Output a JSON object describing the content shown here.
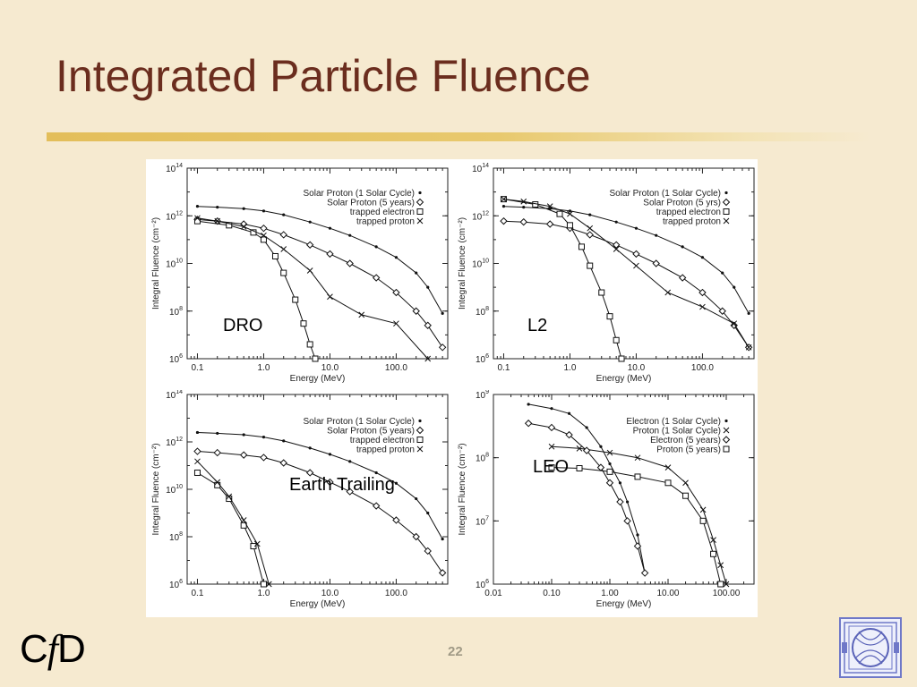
{
  "slide": {
    "title": "Integrated Particle Fluence",
    "page_number": "22",
    "logo_text_c": "C",
    "logo_text_f": "f",
    "logo_text_d": "D",
    "emblem_icon": "institution-emblem-icon"
  },
  "colors": {
    "title": "#6b2d1e",
    "background": "#f6ead0",
    "rule": "#e3be5a"
  },
  "chart_data": [
    {
      "type": "line",
      "panel_label": "DRO",
      "xlabel": "Energy (MeV)",
      "ylabel": "Integral Fluence (cm⁻²)",
      "xscale": "log",
      "yscale": "log",
      "xlim": [
        0.07,
        600
      ],
      "ylim": [
        1000000.0,
        100000000000000.0
      ],
      "xticks": [
        "0.1",
        "1.0",
        "10.0",
        "100.0"
      ],
      "yticks": [
        {
          "base": "10",
          "exp": "14"
        },
        {
          "base": "10",
          "exp": "12"
        },
        {
          "base": "10",
          "exp": "10"
        },
        {
          "base": "10",
          "exp": "8"
        },
        {
          "base": "10",
          "exp": "6"
        }
      ],
      "series": [
        {
          "name": "Solar Proton (1 Solar Cycle)",
          "marker": "dot",
          "x": [
            0.1,
            0.2,
            0.5,
            1,
            2,
            5,
            10,
            20,
            50,
            100,
            200,
            300,
            500
          ],
          "y": [
            2500000000000.0,
            2300000000000.0,
            2000000000000.0,
            1600000000000.0,
            1100000000000.0,
            550000000000.0,
            300000000000.0,
            150000000000.0,
            50000000000.0,
            18000000000.0,
            4000000000.0,
            1000000000.0,
            80000000.0
          ]
        },
        {
          "name": "Solar Proton (5 years)",
          "marker": "diamond",
          "x": [
            0.1,
            0.2,
            0.5,
            1,
            2,
            5,
            10,
            20,
            50,
            100,
            200,
            300,
            500
          ],
          "y": [
            700000000000.0,
            600000000000.0,
            450000000000.0,
            300000000000.0,
            160000000000.0,
            60000000000.0,
            25000000000.0,
            10000000000.0,
            2500000000.0,
            600000000.0,
            100000000.0,
            25000000.0,
            3000000.0
          ]
        },
        {
          "name": "trapped electron",
          "marker": "square",
          "x": [
            0.1,
            0.3,
            0.7,
            1,
            1.5,
            2,
            3,
            4,
            5,
            6
          ],
          "y": [
            600000000000.0,
            400000000000.0,
            200000000000.0,
            100000000000.0,
            20000000000.0,
            4000000000.0,
            300000000.0,
            30000000.0,
            4000000.0,
            1000000.0
          ]
        },
        {
          "name": "trapped proton",
          "marker": "cross",
          "x": [
            0.1,
            0.2,
            0.5,
            1,
            2,
            5,
            10,
            30,
            100,
            300
          ],
          "y": [
            800000000000.0,
            600000000000.0,
            350000000000.0,
            150000000000.0,
            40000000000.0,
            5000000000.0,
            400000000.0,
            70000000.0,
            30000000.0,
            1000000.0
          ]
        }
      ]
    },
    {
      "type": "line",
      "panel_label": "L2",
      "xlabel": "Energy (MeV)",
      "ylabel": "Integral Fluence (cm⁻²)",
      "xscale": "log",
      "yscale": "log",
      "xlim": [
        0.07,
        600
      ],
      "ylim": [
        1000000.0,
        100000000000000.0
      ],
      "xticks": [
        "0.1",
        "1.0",
        "10.0",
        "100.0"
      ],
      "yticks": [
        {
          "base": "10",
          "exp": "14"
        },
        {
          "base": "10",
          "exp": "12"
        },
        {
          "base": "10",
          "exp": "10"
        },
        {
          "base": "10",
          "exp": "8"
        },
        {
          "base": "10",
          "exp": "6"
        }
      ],
      "series": [
        {
          "name": "Solar Proton (1 Solar Cycle)",
          "marker": "dot",
          "x": [
            0.1,
            0.2,
            0.5,
            1,
            2,
            5,
            10,
            20,
            50,
            100,
            200,
            300,
            500
          ],
          "y": [
            2500000000000.0,
            2300000000000.0,
            2000000000000.0,
            1600000000000.0,
            1100000000000.0,
            550000000000.0,
            300000000000.0,
            150000000000.0,
            50000000000.0,
            18000000000.0,
            4000000000.0,
            1000000000.0,
            80000000.0
          ]
        },
        {
          "name": "Solar Proton (5 yrs)",
          "marker": "diamond",
          "x": [
            0.1,
            0.2,
            0.5,
            1,
            2,
            5,
            10,
            20,
            50,
            100,
            200,
            300,
            500
          ],
          "y": [
            600000000000.0,
            550000000000.0,
            450000000000.0,
            300000000000.0,
            160000000000.0,
            60000000000.0,
            25000000000.0,
            10000000000.0,
            2500000000.0,
            600000000.0,
            100000000.0,
            25000000.0,
            3000000.0
          ]
        },
        {
          "name": "trapped electron",
          "marker": "square",
          "x": [
            0.1,
            0.3,
            0.7,
            1,
            1.5,
            2,
            3,
            4,
            5,
            6
          ],
          "y": [
            5000000000000.0,
            3000000000000.0,
            1200000000000.0,
            400000000000.0,
            50000000000.0,
            8000000000.0,
            600000000.0,
            60000000.0,
            6000000.0,
            1000000.0
          ]
        },
        {
          "name": "trapped proton",
          "marker": "cross",
          "x": [
            0.1,
            0.2,
            0.5,
            1,
            2,
            5,
            10,
            30,
            100,
            300,
            500
          ],
          "y": [
            5000000000000.0,
            4000000000000.0,
            2500000000000.0,
            1200000000000.0,
            300000000000.0,
            40000000000.0,
            8000000000.0,
            600000000.0,
            150000000.0,
            30000000.0,
            3000000.0
          ]
        }
      ]
    },
    {
      "type": "line",
      "panel_label": "Earth Trailing",
      "xlabel": "Energy (MeV)",
      "ylabel": "Integral Fluence (cm⁻²)",
      "xscale": "log",
      "yscale": "log",
      "xlim": [
        0.07,
        600
      ],
      "ylim": [
        1000000.0,
        100000000000000.0
      ],
      "xticks": [
        "0.1",
        "1.0",
        "10.0",
        "100.0"
      ],
      "yticks": [
        {
          "base": "10",
          "exp": "14"
        },
        {
          "base": "10",
          "exp": "12"
        },
        {
          "base": "10",
          "exp": "10"
        },
        {
          "base": "10",
          "exp": "8"
        },
        {
          "base": "10",
          "exp": "6"
        }
      ],
      "series": [
        {
          "name": "Solar Proton (1 Solar Cycle)",
          "marker": "dot",
          "x": [
            0.1,
            0.2,
            0.5,
            1,
            2,
            5,
            10,
            20,
            50,
            100,
            200,
            300,
            500
          ],
          "y": [
            2500000000000.0,
            2300000000000.0,
            2000000000000.0,
            1600000000000.0,
            1100000000000.0,
            550000000000.0,
            300000000000.0,
            150000000000.0,
            50000000000.0,
            18000000000.0,
            4000000000.0,
            1000000000.0,
            80000000.0
          ]
        },
        {
          "name": "Solar Proton (5 years)",
          "marker": "diamond",
          "x": [
            0.1,
            0.2,
            0.5,
            1,
            2,
            5,
            10,
            20,
            50,
            100,
            200,
            300,
            500
          ],
          "y": [
            400000000000.0,
            350000000000.0,
            280000000000.0,
            220000000000.0,
            130000000000.0,
            50000000000.0,
            20000000000.0,
            8000000000.0,
            2000000000.0,
            500000000.0,
            100000000.0,
            25000000.0,
            3000000.0
          ]
        },
        {
          "name": "trapped electron",
          "marker": "square",
          "x": [
            0.1,
            0.2,
            0.3,
            0.5,
            0.7,
            1
          ],
          "y": [
            50000000000.0,
            15000000000.0,
            4000000000.0,
            300000000.0,
            40000000.0,
            1000000.0
          ]
        },
        {
          "name": "trapped proton",
          "marker": "cross",
          "x": [
            0.1,
            0.2,
            0.3,
            0.5,
            0.8,
            1.2
          ],
          "y": [
            150000000000.0,
            20000000000.0,
            5000000000.0,
            500000000.0,
            50000000.0,
            1000000.0
          ]
        }
      ]
    },
    {
      "type": "line",
      "panel_label": "LEO",
      "xlabel": "Energy (MeV)",
      "ylabel": "Integral Fluence (cm⁻²)",
      "xscale": "log",
      "yscale": "log",
      "xlim": [
        0.01,
        300
      ],
      "ylim": [
        1000000.0,
        1000000000.0
      ],
      "xticks": [
        "0.01",
        "0.10",
        "1.00",
        "10.00",
        "100.00"
      ],
      "yticks": [
        {
          "base": "10",
          "exp": "9"
        },
        {
          "base": "10",
          "exp": "8"
        },
        {
          "base": "10",
          "exp": "7"
        },
        {
          "base": "10",
          "exp": "6"
        }
      ],
      "series": [
        {
          "name": "Electron (1 Solar Cycle)",
          "marker": "dot",
          "x": [
            0.04,
            0.1,
            0.2,
            0.4,
            0.7,
            1,
            1.5,
            2,
            3,
            4
          ],
          "y": [
            700000000.0,
            600000000.0,
            500000000.0,
            300000000.0,
            150000000.0,
            80000000.0,
            40000000.0,
            20000000.0,
            6000000.0,
            1500000.0
          ]
        },
        {
          "name": "Proton (1 Solar Cycle)",
          "marker": "cross",
          "x": [
            0.1,
            0.3,
            1,
            3,
            10,
            20,
            40,
            60,
            80,
            100
          ],
          "y": [
            150000000.0,
            140000000.0,
            120000000.0,
            100000000.0,
            70000000.0,
            40000000.0,
            15000000.0,
            5000000.0,
            2000000.0,
            1000000.0
          ]
        },
        {
          "name": "Electron (5 years)",
          "marker": "diamond",
          "x": [
            0.04,
            0.1,
            0.2,
            0.4,
            0.7,
            1,
            1.5,
            2,
            3,
            4
          ],
          "y": [
            350000000.0,
            300000000.0,
            230000000.0,
            130000000.0,
            70000000.0,
            40000000.0,
            20000000.0,
            10000000.0,
            4000000.0,
            1500000.0
          ]
        },
        {
          "name": "Proton (5 years)",
          "marker": "square",
          "x": [
            0.1,
            0.3,
            1,
            3,
            10,
            20,
            40,
            60,
            80
          ],
          "y": [
            70000000.0,
            68000000.0,
            60000000.0,
            50000000.0,
            40000000.0,
            25000000.0,
            10000000.0,
            3000000.0,
            1000000.0
          ]
        }
      ]
    }
  ]
}
